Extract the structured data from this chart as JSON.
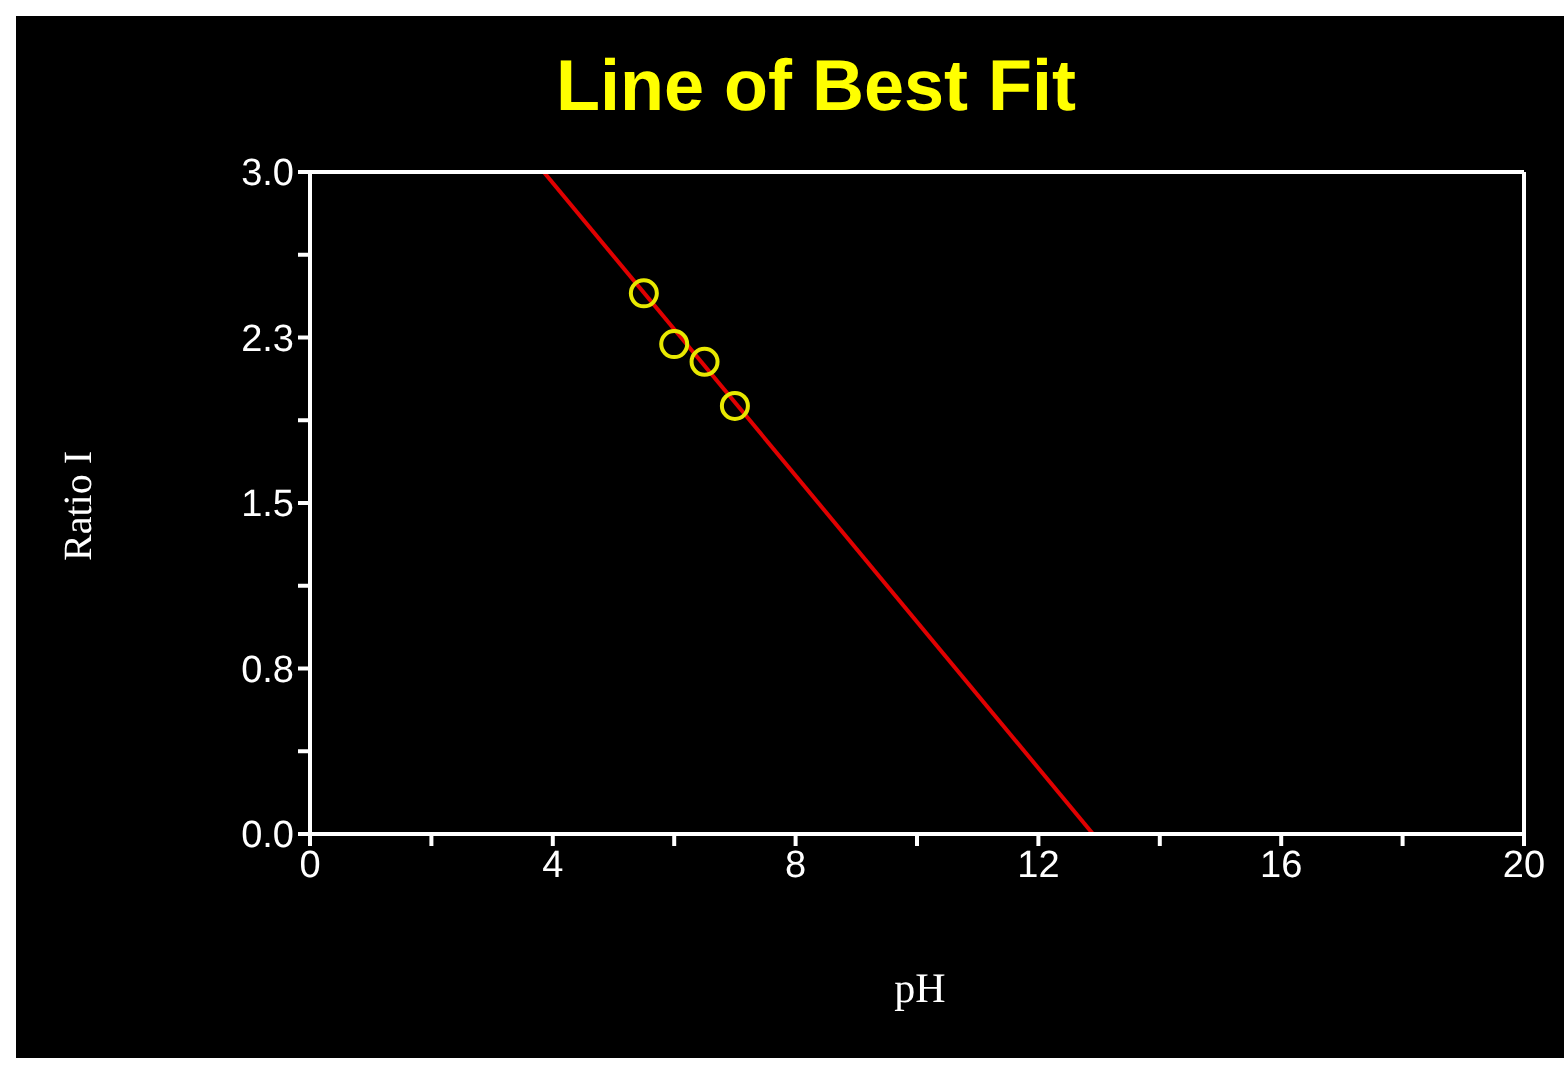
{
  "chart_data": {
    "type": "scatter",
    "title": "Line of Best Fit",
    "xlabel": "pH",
    "ylabel": "Ratio I",
    "xlim": [
      0,
      20
    ],
    "ylim": [
      0,
      3.0
    ],
    "xticks": [
      0,
      {
        "value": 2,
        "label": null
      },
      4,
      {
        "value": 6,
        "label": null
      },
      8,
      {
        "value": 10,
        "label": null
      },
      12,
      {
        "value": 14,
        "label": null
      },
      16,
      {
        "value": 18,
        "label": null
      },
      20
    ],
    "yticks": [
      {
        "value": 0,
        "label": "0.0"
      },
      {
        "value": 0.375,
        "label": null
      },
      {
        "value": 0.75,
        "label": "0.8"
      },
      {
        "value": 1.125,
        "label": null
      },
      {
        "value": 1.5,
        "label": "1.5"
      },
      {
        "value": 1.875,
        "label": null
      },
      {
        "value": 2.25,
        "label": "2.3"
      },
      {
        "value": 2.625,
        "label": null
      },
      {
        "value": 3.0,
        "label": "3.0"
      }
    ],
    "series": [
      {
        "color": "#e8e800",
        "marker": "circle",
        "x": [
          5.5,
          6.0,
          6.5,
          7.0
        ],
        "values": [
          2.45,
          2.22,
          2.14,
          1.94
        ]
      },
      {
        "type": "line",
        "color": "#e00000",
        "marker": "none",
        "x": [
          3.85,
          12.9
        ],
        "values": [
          3.0,
          0
        ]
      }
    ]
  }
}
